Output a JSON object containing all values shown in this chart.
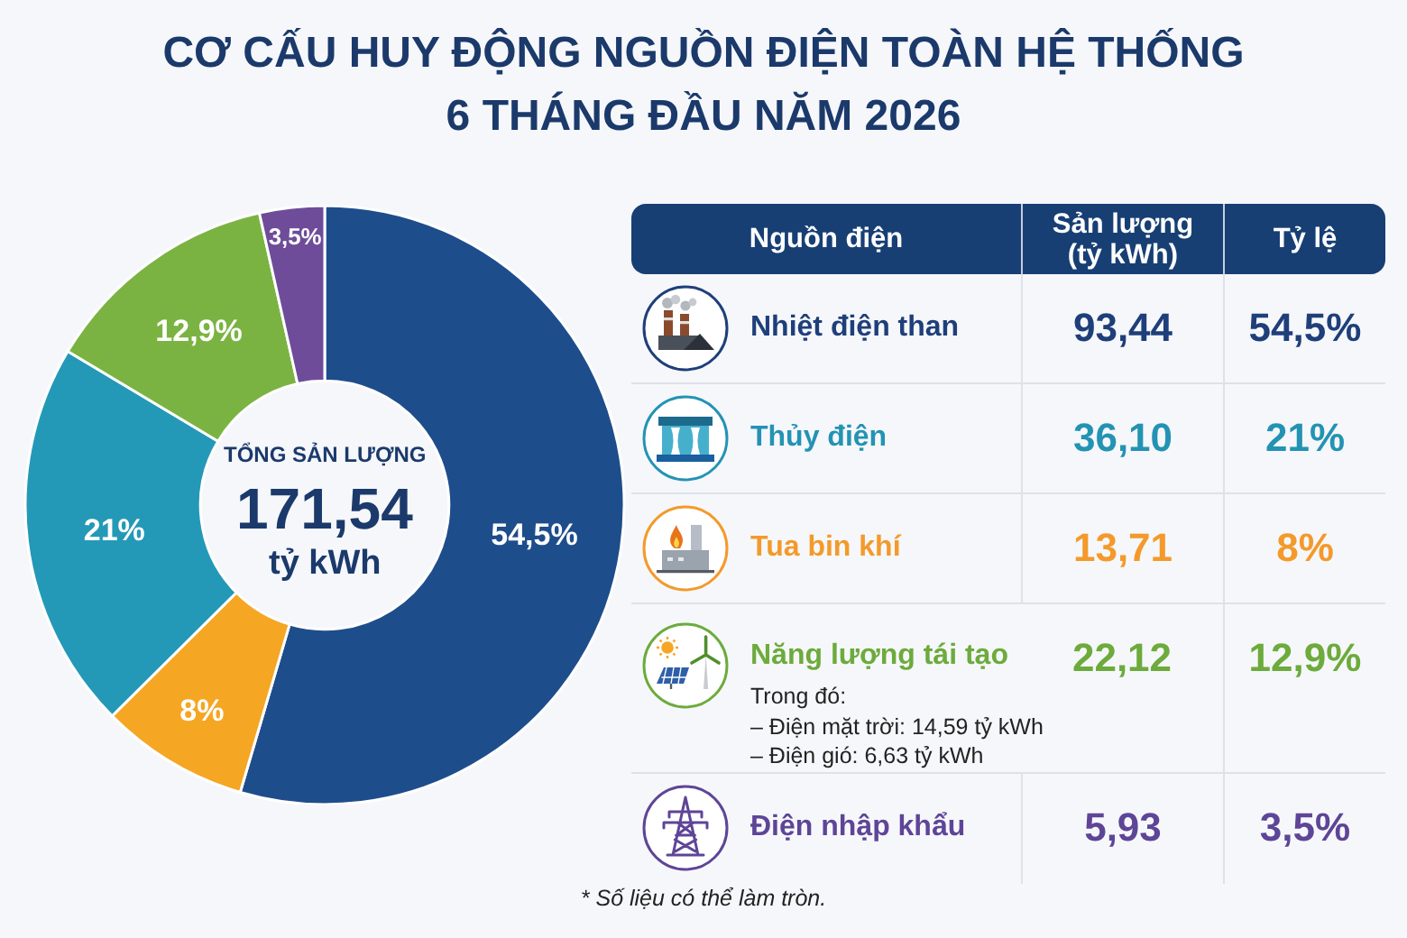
{
  "chart_data": [
    {
      "type": "donut",
      "title": "CƠ CẤU HUY ĐỘNG NGUỒN ĐIỆN TOÀN HỆ THỐNG 6 THÁNG ĐẦU NĂM 2026",
      "categories": [
        null,
        null,
        null,
        null,
        null
      ],
      "values": [
        54.5,
        8,
        21,
        12.9,
        3.5
      ],
      "colors": [
        "#1e4d8c",
        "#f5a623",
        "#2499b7",
        "#7bb342",
        "#6e4c9a"
      ],
      "value_labels": [
        "54,5%",
        "8%",
        "21%",
        "12,9%",
        "3,5%"
      ],
      "annotations": [
        "TỔNG SẢN LƯỢNG",
        "171,54",
        "tỷ kWh"
      ]
    },
    {
      "type": "other",
      "ylabel": "Nguồn điện",
      "categories": [
        "Nhiệt điện than",
        "Thủy điện",
        "Tua bin khí",
        "Năng lượng tái tạo",
        "Điện nhập khẩu"
      ],
      "colors": [
        "#1f3f7a",
        "#2393b4",
        "#f39a2b",
        "#6cab3c",
        "#5e4597"
      ],
      "series": [
        {
          "name": "Sản lượng (tỷ kWh)",
          "values": [
            93.44,
            36.1,
            13.71,
            22.12,
            5.93
          ],
          "value_labels": [
            "93,44",
            "36,10",
            "13,71",
            "22,12",
            "5,93"
          ]
        },
        {
          "name": "Tỷ lệ",
          "values": [
            54.5,
            21,
            8,
            12.9,
            3.5
          ],
          "value_labels": [
            "54,5%",
            "21%",
            "8%",
            "12,9%",
            "3,5%"
          ]
        }
      ],
      "annotations": [
        {
          "text": "Trong đó:",
          "y": "Năng lượng tái tạo"
        },
        {
          "text": "– Điện mặt trời: 14,59 tỷ kWh",
          "y": "Năng lượng tái tạo"
        },
        {
          "text": "– Điện gió: 6,63 tỷ kWh",
          "y": "Năng lượng tái tạo"
        },
        "* Số liệu có thể làm tròn."
      ]
    }
  ]
}
